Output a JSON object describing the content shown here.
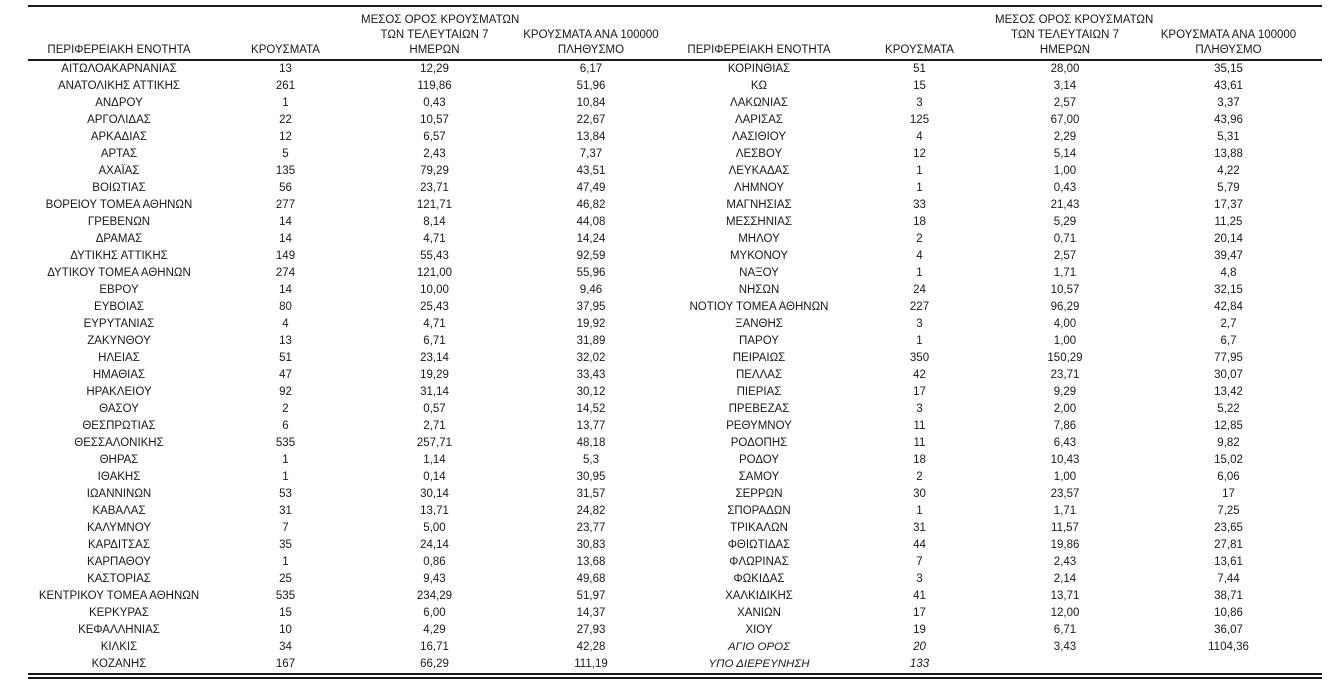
{
  "table": {
    "columns": {
      "region": "ΠΕΡΙΦΕΡΕΙΑΚΗ ΕΝΟΤΗΤΑ",
      "cases": "ΚΡΟΥΣΜΑΤΑ",
      "avg7_lines": [
        "ΜΕΣΟΣ ΟΡΟΣ ΚΡΟΥΣΜΑΤΩΝ",
        "ΤΩΝ ΤΕΛΕΥΤΑΙΩΝ 7",
        "ΗΜΕΡΩΝ"
      ],
      "per100k_lines": [
        "ΚΡΟΥΣΜΑΤΑ ΑΝΑ 100000",
        "ΠΛΗΘΥΣΜΟ"
      ]
    },
    "left_rows": [
      [
        "ΑΙΤΩΛΟΑΚΑΡΝΑΝΙΑΣ",
        "13",
        "12,29",
        "6,17"
      ],
      [
        "ΑΝΑΤΟΛΙΚΗΣ ΑΤΤΙΚΗΣ",
        "261",
        "119,86",
        "51,96"
      ],
      [
        "ΑΝΔΡΟΥ",
        "1",
        "0,43",
        "10,84"
      ],
      [
        "ΑΡΓΟΛΙΔΑΣ",
        "22",
        "10,57",
        "22,67"
      ],
      [
        "ΑΡΚΑΔΙΑΣ",
        "12",
        "6,57",
        "13,84"
      ],
      [
        "ΑΡΤΑΣ",
        "5",
        "2,43",
        "7,37"
      ],
      [
        "ΑΧΑΪΑΣ",
        "135",
        "79,29",
        "43,51"
      ],
      [
        "ΒΟΙΩΤΙΑΣ",
        "56",
        "23,71",
        "47,49"
      ],
      [
        "ΒΟΡΕΙΟΥ ΤΟΜΕΑ ΑΘΗΝΩΝ",
        "277",
        "121,71",
        "46,82"
      ],
      [
        "ΓΡΕΒΕΝΩΝ",
        "14",
        "8,14",
        "44,08"
      ],
      [
        "ΔΡΑΜΑΣ",
        "14",
        "4,71",
        "14,24"
      ],
      [
        "ΔΥΤΙΚΗΣ ΑΤΤΙΚΗΣ",
        "149",
        "55,43",
        "92,59"
      ],
      [
        "ΔΥΤΙΚΟΥ ΤΟΜΕΑ ΑΘΗΝΩΝ",
        "274",
        "121,00",
        "55,96"
      ],
      [
        "ΕΒΡΟΥ",
        "14",
        "10,00",
        "9,46"
      ],
      [
        "ΕΥΒΟΙΑΣ",
        "80",
        "25,43",
        "37,95"
      ],
      [
        "ΕΥΡΥΤΑΝΙΑΣ",
        "4",
        "4,71",
        "19,92"
      ],
      [
        "ΖΑΚΥΝΘΟΥ",
        "13",
        "6,71",
        "31,89"
      ],
      [
        "ΗΛΕΙΑΣ",
        "51",
        "23,14",
        "32,02"
      ],
      [
        "ΗΜΑΘΙΑΣ",
        "47",
        "19,29",
        "33,43"
      ],
      [
        "ΗΡΑΚΛΕΙΟΥ",
        "92",
        "31,14",
        "30,12"
      ],
      [
        "ΘΑΣΟΥ",
        "2",
        "0,57",
        "14,52"
      ],
      [
        "ΘΕΣΠΡΩΤΙΑΣ",
        "6",
        "2,71",
        "13,77"
      ],
      [
        "ΘΕΣΣΑΛΟΝΙΚΗΣ",
        "535",
        "257,71",
        "48,18"
      ],
      [
        "ΘΗΡΑΣ",
        "1",
        "1,14",
        "5,3"
      ],
      [
        "ΙΘΑΚΗΣ",
        "1",
        "0,14",
        "30,95"
      ],
      [
        "ΙΩΑΝΝΙΝΩΝ",
        "53",
        "30,14",
        "31,57"
      ],
      [
        "ΚΑΒΑΛΑΣ",
        "31",
        "13,71",
        "24,82"
      ],
      [
        "ΚΑΛΥΜΝΟΥ",
        "7",
        "5,00",
        "23,77"
      ],
      [
        "ΚΑΡΔΙΤΣΑΣ",
        "35",
        "24,14",
        "30,83"
      ],
      [
        "ΚΑΡΠΑΘΟΥ",
        "1",
        "0,86",
        "13,68"
      ],
      [
        "ΚΑΣΤΟΡΙΑΣ",
        "25",
        "9,43",
        "49,68"
      ],
      [
        "ΚΕΝΤΡΙΚΟΥ ΤΟΜΕΑ ΑΘΗΝΩΝ",
        "535",
        "234,29",
        "51,97"
      ],
      [
        "ΚΕΡΚΥΡΑΣ",
        "15",
        "6,00",
        "14,37"
      ],
      [
        "ΚΕΦΑΛΛΗΝΙΑΣ",
        "10",
        "4,29",
        "27,93"
      ],
      [
        "ΚΙΛΚΙΣ",
        "34",
        "16,71",
        "42,28"
      ],
      [
        "ΚΟΖΑΝΗΣ",
        "167",
        "66,29",
        "111,19"
      ]
    ],
    "right_rows": [
      [
        "ΚΟΡΙΝΘΙΑΣ",
        "51",
        "28,00",
        "35,15"
      ],
      [
        "ΚΩ",
        "15",
        "3,14",
        "43,61"
      ],
      [
        "ΛΑΚΩΝΙΑΣ",
        "3",
        "2,57",
        "3,37"
      ],
      [
        "ΛΑΡΙΣΑΣ",
        "125",
        "67,00",
        "43,96"
      ],
      [
        "ΛΑΣΙΘΙΟΥ",
        "4",
        "2,29",
        "5,31"
      ],
      [
        "ΛΕΣΒΟΥ",
        "12",
        "5,14",
        "13,88"
      ],
      [
        "ΛΕΥΚΑΔΑΣ",
        "1",
        "1,00",
        "4,22"
      ],
      [
        "ΛΗΜΝΟΥ",
        "1",
        "0,43",
        "5,79"
      ],
      [
        "ΜΑΓΝΗΣΙΑΣ",
        "33",
        "21,43",
        "17,37"
      ],
      [
        "ΜΕΣΣΗΝΙΑΣ",
        "18",
        "5,29",
        "11,25"
      ],
      [
        "ΜΗΛΟΥ",
        "2",
        "0,71",
        "20,14"
      ],
      [
        "ΜΥΚΟΝΟΥ",
        "4",
        "2,57",
        "39,47"
      ],
      [
        "ΝΑΞΟΥ",
        "1",
        "1,71",
        "4,8"
      ],
      [
        "ΝΗΣΩΝ",
        "24",
        "10,57",
        "32,15"
      ],
      [
        "ΝΟΤΙΟΥ ΤΟΜΕΑ ΑΘΗΝΩΝ",
        "227",
        "96,29",
        "42,84"
      ],
      [
        "ΞΑΝΘΗΣ",
        "3",
        "4,00",
        "2,7"
      ],
      [
        "ΠΑΡΟΥ",
        "1",
        "1,00",
        "6,7"
      ],
      [
        "ΠΕΙΡΑΙΩΣ",
        "350",
        "150,29",
        "77,95"
      ],
      [
        "ΠΕΛΛΑΣ",
        "42",
        "23,71",
        "30,07"
      ],
      [
        "ΠΙΕΡΙΑΣ",
        "17",
        "9,29",
        "13,42"
      ],
      [
        "ΠΡΕΒΕΖΑΣ",
        "3",
        "2,00",
        "5,22"
      ],
      [
        "ΡΕΘΥΜΝΟΥ",
        "11",
        "7,86",
        "12,85"
      ],
      [
        "ΡΟΔΟΠΗΣ",
        "11",
        "6,43",
        "9,82"
      ],
      [
        "ΡΟΔΟΥ",
        "18",
        "10,43",
        "15,02"
      ],
      [
        "ΣΑΜΟΥ",
        "2",
        "1,00",
        "6,06"
      ],
      [
        "ΣΕΡΡΩΝ",
        "30",
        "23,57",
        "17"
      ],
      [
        "ΣΠΟΡΑΔΩΝ",
        "1",
        "1,71",
        "7,25"
      ],
      [
        "ΤΡΙΚΑΛΩΝ",
        "31",
        "11,57",
        "23,65"
      ],
      [
        "ΦΘΙΩΤΙΔΑΣ",
        "44",
        "19,86",
        "27,81"
      ],
      [
        "ΦΛΩΡΙΝΑΣ",
        "7",
        "2,43",
        "13,61"
      ],
      [
        "ΦΩΚΙΔΑΣ",
        "3",
        "2,14",
        "7,44"
      ],
      [
        "ΧΑΛΚΙΔΙΚΗΣ",
        "41",
        "13,71",
        "38,71"
      ],
      [
        "ΧΑΝΙΩΝ",
        "17",
        "12,00",
        "10,86"
      ],
      [
        "ΧΙΟΥ",
        "19",
        "6,71",
        "36,07"
      ],
      [
        "ΑΓΙΟ ΟΡΟΣ",
        "20",
        "3,43",
        "1104,36",
        true
      ],
      [
        "ΥΠΟ ΔΙΕΡΕΥΝΗΣΗ",
        "133",
        "",
        "",
        true
      ]
    ]
  }
}
